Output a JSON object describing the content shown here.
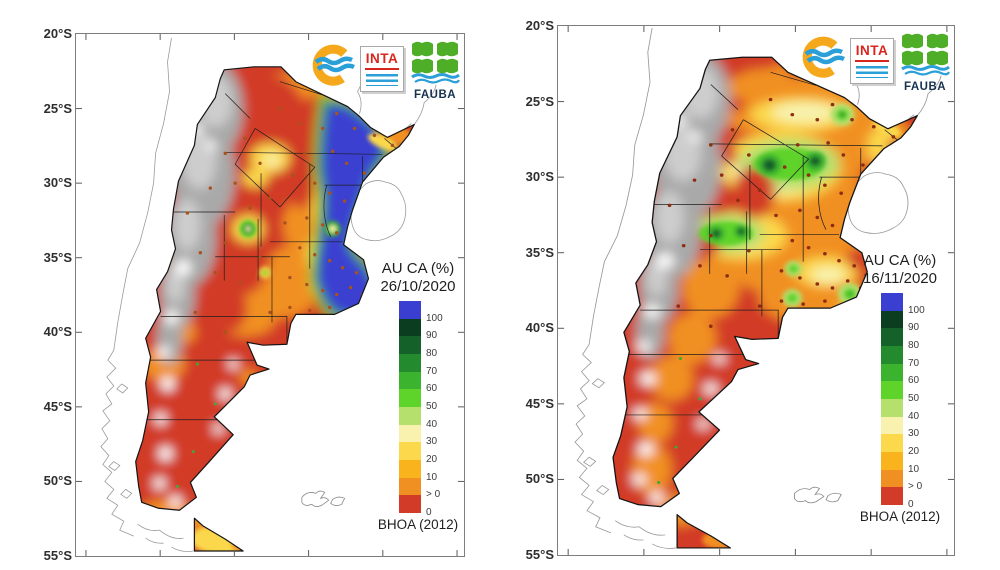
{
  "figure": {
    "panels": [
      {
        "legend_title": "AU CA (%)",
        "date": "26/10/2020",
        "source": "BHOA (2012)"
      },
      {
        "legend_title": "AU CA (%)",
        "date": "16/11/2020",
        "source": "BHOA (2012)"
      }
    ],
    "latitude_labels": [
      "20°S",
      "25°S",
      "30°S",
      "35°S",
      "40°S",
      "45°S",
      "50°S",
      "55°S"
    ],
    "colorbar": {
      "labels": [
        "100",
        "90",
        "80",
        "70",
        "60",
        "50",
        "40",
        "30",
        "20",
        "10",
        "> 0",
        "0"
      ],
      "colors": [
        "#3b3fd1",
        "#0b3d20",
        "#15612a",
        "#238a2e",
        "#3cb32f",
        "#5ed32a",
        "#b5e06e",
        "#f8f2ae",
        "#fbd84c",
        "#f9b31d",
        "#f19022",
        "#d23b28"
      ]
    },
    "logos": {
      "inta_label": "INTA",
      "fauba_label": "FAUBA"
    },
    "accent_colors": {
      "inta_red": "#d9261c",
      "logo_orange": "#f5a81c",
      "logo_blue": "#2b9fd8",
      "fauba_green": "#4fae28",
      "fauba_navy": "#16324f"
    }
  }
}
